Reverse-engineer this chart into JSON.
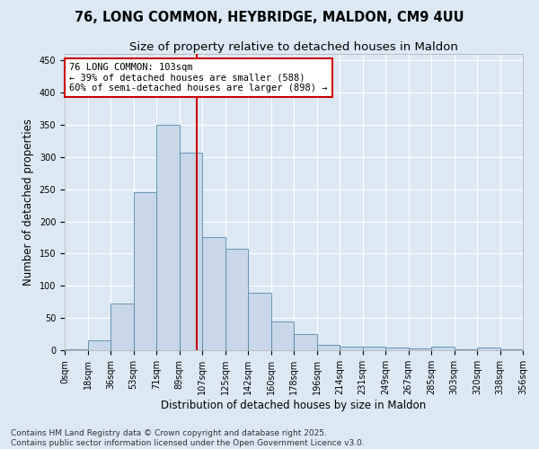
{
  "title_line1": "76, LONG COMMON, HEYBRIDGE, MALDON, CM9 4UU",
  "title_line2": "Size of property relative to detached houses in Maldon",
  "xlabel": "Distribution of detached houses by size in Maldon",
  "ylabel": "Number of detached properties",
  "bin_labels": [
    "0sqm",
    "18sqm",
    "36sqm",
    "53sqm",
    "71sqm",
    "89sqm",
    "107sqm",
    "125sqm",
    "142sqm",
    "160sqm",
    "178sqm",
    "196sqm",
    "214sqm",
    "231sqm",
    "249sqm",
    "267sqm",
    "285sqm",
    "303sqm",
    "320sqm",
    "338sqm",
    "356sqm"
  ],
  "bar_values": [
    2,
    15,
    72,
    245,
    350,
    307,
    176,
    158,
    89,
    45,
    25,
    8,
    5,
    5,
    4,
    3,
    5,
    1,
    4,
    1
  ],
  "num_bars": 20,
  "bar_color": "#c8d8e8",
  "bar_edge_color": "#5588aa",
  "property_bin": 5,
  "vline_color": "#cc0000",
  "annotation_text": "76 LONG COMMON: 103sqm\n← 39% of detached houses are smaller (588)\n60% of semi-detached houses are larger (898) →",
  "annotation_box_color": "#ffffff",
  "annotation_box_edge_color": "#cc0000",
  "ylim": [
    0,
    460
  ],
  "yticks": [
    0,
    50,
    100,
    150,
    200,
    250,
    300,
    350,
    400,
    450
  ],
  "background_color": "#dce9f5",
  "footer_text": "Contains HM Land Registry data © Crown copyright and database right 2025.\nContains public sector information licensed under the Open Government Licence v3.0.",
  "title_fontsize": 10.5,
  "subtitle_fontsize": 9.5,
  "axis_label_fontsize": 8.5,
  "tick_fontsize": 7,
  "annotation_fontsize": 7.5,
  "footer_fontsize": 6.5
}
